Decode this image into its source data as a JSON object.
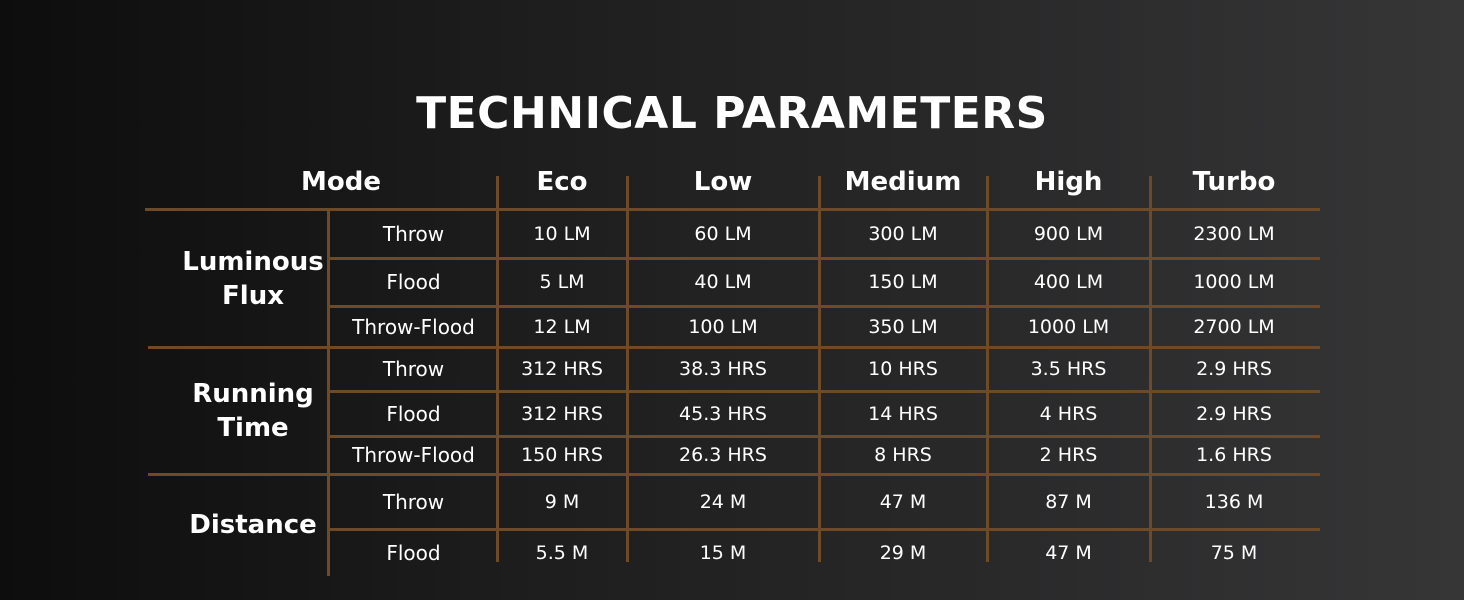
{
  "title": "TECHNICAL PARAMETERS",
  "table": {
    "header_mode": "Mode",
    "modes": [
      "Eco",
      "Low",
      "Medium",
      "High",
      "Turbo"
    ],
    "groups": [
      {
        "name": "Luminous Flux",
        "rows": [
          {
            "label": "Throw",
            "values": [
              "10 LM",
              "60 LM",
              "300 LM",
              "900 LM",
              "2300 LM"
            ]
          },
          {
            "label": "Flood",
            "values": [
              "5 LM",
              "40 LM",
              "150 LM",
              "400 LM",
              "1000 LM"
            ]
          },
          {
            "label": "Throw-Flood",
            "values": [
              "12 LM",
              "100 LM",
              "350 LM",
              "1000 LM",
              "2700 LM"
            ]
          }
        ]
      },
      {
        "name": "Running Time",
        "rows": [
          {
            "label": "Throw",
            "values": [
              "312 HRS",
              "38.3 HRS",
              "10 HRS",
              "3.5 HRS",
              "2.9 HRS"
            ]
          },
          {
            "label": "Flood",
            "values": [
              "312 HRS",
              "45.3 HRS",
              "14 HRS",
              "4 HRS",
              "2.9 HRS"
            ]
          },
          {
            "label": "Throw-Flood",
            "values": [
              "150 HRS",
              "26.3 HRS",
              "8 HRS",
              "2 HRS",
              "1.6 HRS"
            ]
          }
        ]
      },
      {
        "name": "Distance",
        "rows": [
          {
            "label": "Throw",
            "values": [
              "9 M",
              "24 M",
              "47 M",
              "87 M",
              "136 M"
            ]
          },
          {
            "label": "Flood",
            "values": [
              "5.5 M",
              "15 M",
              "29 M",
              "47 M",
              "75 M"
            ]
          }
        ]
      }
    ]
  },
  "colors": {
    "grid_line": "#6e4a26",
    "text": "#ffffff",
    "background_left": "#0d0d0d",
    "background_right": "#363637"
  }
}
